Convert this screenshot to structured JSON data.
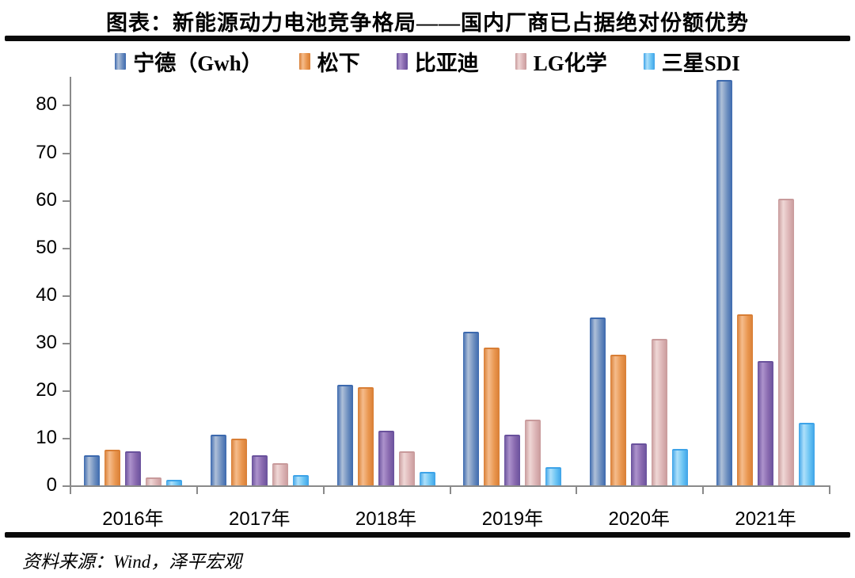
{
  "header": {
    "title": "图表：新能源动力电池竞争格局——国内厂商已占据绝对份额优势"
  },
  "footer": {
    "source": "资料来源：Wind，泽平宏观"
  },
  "chart_data": {
    "type": "bar",
    "title": "新能源动力电池竞争格局——国内厂商已占据绝对份额优势",
    "categories": [
      "2016年",
      "2017年",
      "2018年",
      "2019年",
      "2020年",
      "2021年"
    ],
    "series": [
      {
        "name": "宁德（Gwh）",
        "color": "#6D8EBF",
        "edge": "#3C69AE",
        "mid": "#AFC0D8",
        "values": [
          6.4,
          10.6,
          21.2,
          32.3,
          35.3,
          85.3
        ]
      },
      {
        "name": "松下",
        "color": "#E9964F",
        "edge": "#D87E35",
        "mid": "#F5BC8C",
        "values": [
          7.5,
          9.8,
          20.6,
          28.9,
          27.4,
          36.0
        ]
      },
      {
        "name": "比亚迪",
        "color": "#8768AE",
        "edge": "#69519C",
        "mid": "#AD93CC",
        "values": [
          7.2,
          6.4,
          11.5,
          10.7,
          8.8,
          26.2
        ]
      },
      {
        "name": "LG化学",
        "color": "#DCB4B5",
        "edge": "#C89A9B",
        "mid": "#EFD7D6",
        "values": [
          1.7,
          4.7,
          7.2,
          13.9,
          30.8,
          60.3
        ]
      },
      {
        "name": "三星SDI",
        "color": "#69C3F3",
        "edge": "#3DA3E8",
        "mid": "#AEE0FA",
        "values": [
          1.1,
          2.1,
          2.9,
          3.8,
          7.6,
          13.1
        ]
      }
    ],
    "xlabel": "",
    "ylabel": "",
    "ylim": [
      0,
      85.9
    ],
    "yticks": [
      0,
      10,
      20,
      30,
      40,
      50,
      60,
      70,
      80
    ],
    "grid": false,
    "legend_position": "top",
    "axis_color": "#8a8a8a"
  }
}
